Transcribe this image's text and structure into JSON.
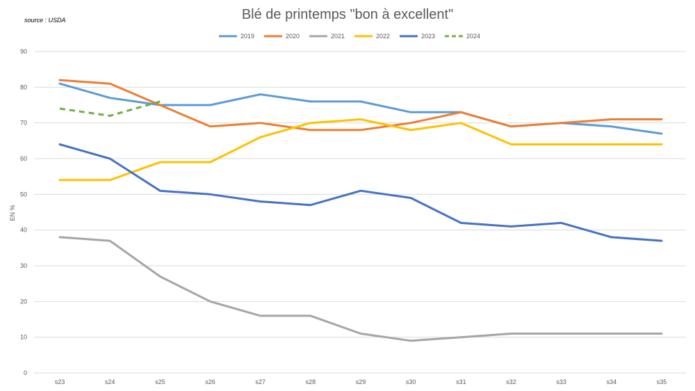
{
  "chart_data": {
    "type": "line",
    "title": "Blé de printemps \"bon à excellent\"",
    "source": "source : USDA",
    "ylabel": "EN %",
    "xlabel": "",
    "ylim": [
      0,
      90
    ],
    "yticks": [
      0,
      10,
      20,
      30,
      40,
      50,
      60,
      70,
      80,
      90
    ],
    "grid": true,
    "legend_position": "top",
    "categories": [
      "s23",
      "s24",
      "s25",
      "s26",
      "s27",
      "s28",
      "s29",
      "s30",
      "s31",
      "s32",
      "s33",
      "s34",
      "s35"
    ],
    "series": [
      {
        "name": "2019",
        "color": "#5B9BD5",
        "dash": "solid",
        "values": [
          81,
          77,
          75,
          75,
          78,
          76,
          76,
          73,
          73,
          69,
          70,
          69,
          67
        ]
      },
      {
        "name": "2020",
        "color": "#ED7D31",
        "dash": "solid",
        "values": [
          82,
          81,
          75,
          69,
          70,
          68,
          68,
          70,
          73,
          69,
          70,
          71,
          71
        ]
      },
      {
        "name": "2021",
        "color": "#A5A5A5",
        "dash": "solid",
        "values": [
          38,
          37,
          27,
          20,
          16,
          16,
          11,
          9,
          10,
          11,
          11,
          11,
          11
        ]
      },
      {
        "name": "2022",
        "color": "#FFC000",
        "dash": "solid",
        "values": [
          54,
          54,
          59,
          59,
          66,
          70,
          71,
          68,
          70,
          64,
          64,
          64,
          64
        ]
      },
      {
        "name": "2023",
        "color": "#4472C4",
        "dash": "solid",
        "values": [
          64,
          60,
          51,
          50,
          48,
          47,
          51,
          49,
          42,
          41,
          42,
          38,
          37
        ]
      },
      {
        "name": "2024",
        "color": "#70AD47",
        "dash": "dashed",
        "values": [
          74,
          72,
          76,
          null,
          null,
          null,
          null,
          null,
          null,
          null,
          null,
          null,
          null
        ]
      }
    ]
  }
}
